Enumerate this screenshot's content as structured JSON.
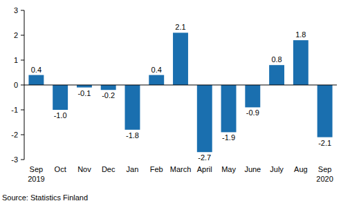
{
  "chart_data": {
    "type": "bar",
    "categories": [
      "Sep\n2019",
      "Oct",
      "Nov",
      "Dec",
      "Jan",
      "Feb",
      "March",
      "April",
      "May",
      "June",
      "July",
      "Aug",
      "Sep\n2020"
    ],
    "values": [
      0.4,
      -1.0,
      -0.1,
      -0.2,
      -1.8,
      0.4,
      2.1,
      -2.7,
      -1.9,
      -0.9,
      0.8,
      1.8,
      -2.1
    ],
    "value_labels": [
      "0.4",
      "-1.0",
      "-0.1",
      "-0.2",
      "-1.8",
      "0.4",
      "2.1",
      "-2.7",
      "-1.9",
      "-0.9",
      "0.8",
      "1.8",
      "-2.1"
    ],
    "color": "#1a6faf",
    "ylim": [
      -3,
      3
    ],
    "yticks": [
      -3,
      -2,
      -1,
      0,
      1,
      2,
      3
    ],
    "grid": false,
    "data_labels": true,
    "source": "Source: Statistics Finland"
  }
}
